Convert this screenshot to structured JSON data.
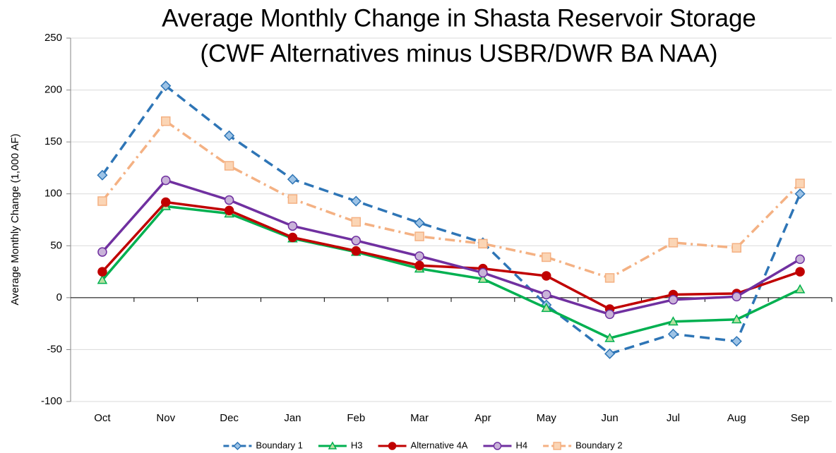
{
  "chart_data": {
    "type": "line",
    "title": "Average Monthly Change in Shasta Reservoir Storage",
    "subtitle": "(CWF Alternatives minus USBR/DWR BA NAA)",
    "y_label": "Average Monthly Change (1,000 AF)",
    "categories": [
      "Oct",
      "Nov",
      "Dec",
      "Jan",
      "Feb",
      "Mar",
      "Apr",
      "May",
      "Jun",
      "Jul",
      "Aug",
      "Sep"
    ],
    "series": [
      {
        "name": "Boundary 1",
        "color": "#2e75b6",
        "marker_fill": "#9dc3e6",
        "marker": "diamond",
        "dash": "14 8",
        "values": [
          118,
          204,
          156,
          114,
          93,
          72,
          53,
          -7,
          -54,
          -35,
          -42,
          100
        ]
      },
      {
        "name": "H3",
        "color": "#00b050",
        "marker_fill": "#b7e1a1",
        "marker": "triangle",
        "dash": "none",
        "values": [
          17,
          88,
          81,
          57,
          44,
          28,
          18,
          -10,
          -39,
          -23,
          -21,
          8
        ]
      },
      {
        "name": "Alternative 4A",
        "color": "#c00000",
        "marker_fill": "#c00000",
        "marker": "circle",
        "dash": "none",
        "values": [
          25,
          92,
          84,
          58,
          45,
          31,
          28,
          21,
          -11,
          3,
          4,
          25
        ]
      },
      {
        "name": "H4",
        "color": "#7030a0",
        "marker_fill": "#c9b3d9",
        "marker": "circle",
        "dash": "none",
        "values": [
          44,
          113,
          94,
          69,
          55,
          40,
          24,
          3,
          -16,
          -2,
          1,
          37
        ]
      },
      {
        "name": "Boundary 2",
        "color": "#f4b183",
        "marker_fill": "#fbd5b5",
        "marker": "square",
        "dash": "14 6 3 6",
        "values": [
          93,
          170,
          127,
          95,
          73,
          59,
          52,
          39,
          19,
          53,
          48,
          110
        ]
      }
    ],
    "ylim": [
      -100,
      250
    ],
    "yticks": [
      -100,
      -50,
      0,
      50,
      100,
      150,
      200,
      250
    ],
    "grid": true,
    "legend": "bottom"
  }
}
